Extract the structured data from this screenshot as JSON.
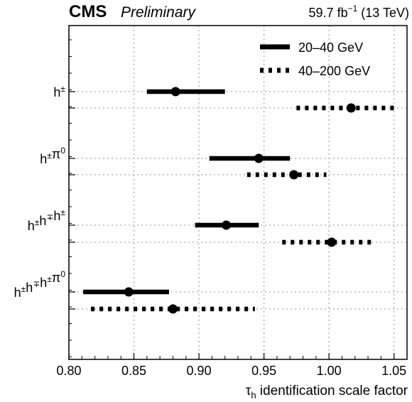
{
  "header": {
    "experiment": "CMS",
    "status": "Preliminary",
    "lumi_value": "59.7 fb",
    "lumi_exponent": "−1",
    "lumi_energy": "(13 TeV)"
  },
  "legend": [
    {
      "label": "20–40 GeV"
    },
    {
      "label": "40–200 GeV"
    }
  ],
  "xlabel": {
    "symbol": "τ",
    "subscript": "h",
    "text": " identification scale factor"
  },
  "chart_data": {
    "type": "scatter",
    "orientation": "horizontal-errorbar",
    "xlim": [
      0.8,
      1.06
    ],
    "xticks": [
      "0.80",
      "0.85",
      "0.90",
      "0.95",
      "1.00",
      "1.05"
    ],
    "grid": true,
    "legend_position": "top-right",
    "categories": [
      "h±",
      "h±π0",
      "h±h∓h±",
      "h±h∓h±π0"
    ],
    "category_labels": [
      {
        "base": "h",
        "sup": [
          "±"
        ],
        "rest": ""
      },
      {
        "base": "h",
        "sup": [
          "±"
        ],
        "rest": "π",
        "rest_sup": "0"
      },
      {
        "base": "h",
        "sup": [
          "±"
        ],
        "parts": [
          [
            "h",
            "∓"
          ],
          [
            "h",
            "±"
          ]
        ]
      },
      {
        "base": "h",
        "sup": [
          "±"
        ],
        "parts": [
          [
            "h",
            "∓"
          ],
          [
            "h",
            "±"
          ],
          [
            "π",
            "0"
          ]
        ]
      }
    ],
    "series": [
      {
        "name": "20–40 GeV",
        "style": "solid",
        "points": [
          {
            "category": "h±",
            "value": 0.882,
            "low": 0.86,
            "high": 0.92
          },
          {
            "category": "h±π0",
            "value": 0.946,
            "low": 0.908,
            "high": 0.97
          },
          {
            "category": "h±h∓h±",
            "value": 0.921,
            "low": 0.897,
            "high": 0.946
          },
          {
            "category": "h±h∓h±π0",
            "value": 0.846,
            "low": 0.811,
            "high": 0.877
          }
        ]
      },
      {
        "name": "40–200 GeV",
        "style": "dotted",
        "points": [
          {
            "category": "h±",
            "value": 1.017,
            "low": 0.975,
            "high": 1.05
          },
          {
            "category": "h±π0",
            "value": 0.973,
            "low": 0.937,
            "high": 0.998
          },
          {
            "category": "h±h∓h±",
            "value": 1.002,
            "low": 0.964,
            "high": 1.035
          },
          {
            "category": "h±h∓h±π0",
            "value": 0.88,
            "low": 0.817,
            "high": 0.943
          }
        ]
      }
    ]
  }
}
